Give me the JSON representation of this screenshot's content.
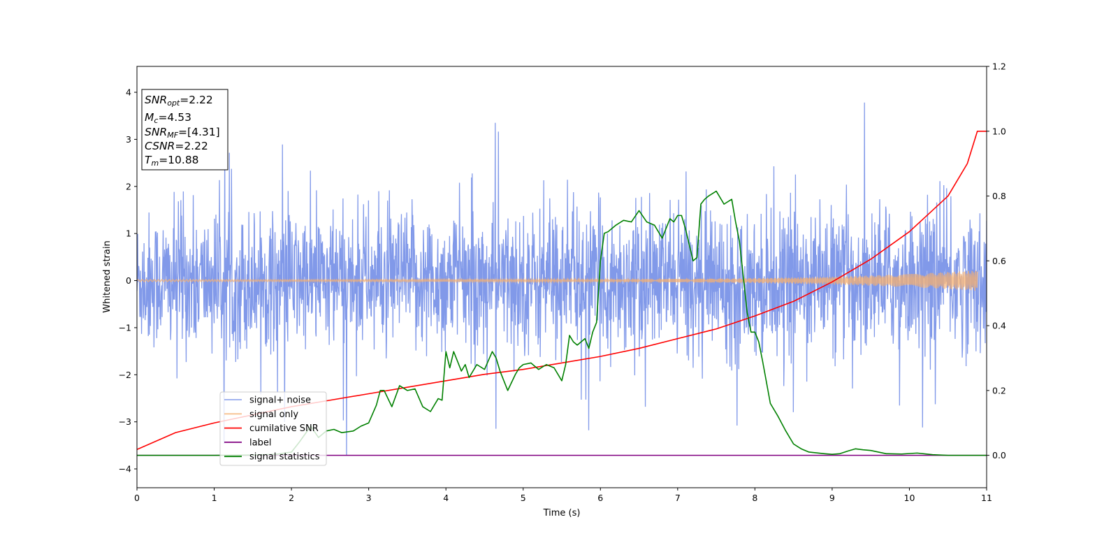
{
  "chart_data": {
    "type": "line",
    "xlabel": "Time (s)",
    "ylabel": "Whitened strain",
    "xlim": [
      0,
      11
    ],
    "ylim_left": [
      -4.4,
      4.55
    ],
    "ylim_right": [
      -0.1,
      1.2
    ],
    "xticks": [
      "0",
      "1",
      "2",
      "3",
      "4",
      "5",
      "6",
      "7",
      "8",
      "9",
      "10",
      "11"
    ],
    "yticks_left": [
      "4",
      "3",
      "2",
      "1",
      "0",
      "−1",
      "−2",
      "−3",
      "−4"
    ],
    "yticks_right": [
      "1.2",
      "1.0",
      "0.8",
      "0.6",
      "0.4",
      "0.2",
      "0.0"
    ],
    "grid": false,
    "legend_position": "lower-left",
    "info_box": {
      "lines": [
        {
          "main": "SNR",
          "sub": "opt",
          "rest": "=2.22"
        },
        {
          "main": "M",
          "sub": "c",
          "rest": "=4.53"
        },
        {
          "main": "SNR",
          "sub": "MF",
          "rest": "=[4.31]"
        },
        {
          "main": "CSNR",
          "sub": "",
          "rest": "=2.22"
        },
        {
          "main": "T",
          "sub": "m",
          "rest": "=10.88"
        }
      ]
    },
    "series": [
      {
        "name": "signal+ noise",
        "axis": "left",
        "color": "#7a94e8",
        "description_values": "noise_band",
        "envelope_typical": 1.6,
        "envelope_max": 4.17,
        "x_range": [
          0,
          11
        ]
      },
      {
        "name": "signal only",
        "axis": "left",
        "color": "#f5b070",
        "chirp_amplitude_start": 0.02,
        "chirp_amplitude_end": 0.22,
        "x_range": [
          0,
          10.88
        ]
      },
      {
        "name": "cumilative SNR",
        "axis": "right",
        "color": "#ff0000",
        "x": [
          0,
          0.5,
          1,
          1.5,
          2,
          2.5,
          3,
          3.5,
          4,
          4.5,
          5,
          5.5,
          6,
          6.5,
          7,
          7.5,
          8,
          8.5,
          9,
          9.5,
          10,
          10.5,
          10.75,
          10.88,
          11
        ],
        "y": [
          0.018,
          0.07,
          0.1,
          0.125,
          0.15,
          0.17,
          0.19,
          0.21,
          0.23,
          0.25,
          0.265,
          0.285,
          0.305,
          0.33,
          0.36,
          0.39,
          0.43,
          0.475,
          0.535,
          0.605,
          0.69,
          0.8,
          0.9,
          1.0,
          1.0
        ]
      },
      {
        "name": "label",
        "axis": "right",
        "color": "#800080",
        "x": [
          0,
          11
        ],
        "y": [
          0.0,
          0.0
        ]
      },
      {
        "name": "signal statistics",
        "axis": "right",
        "color": "#008000",
        "x": [
          0,
          0.5,
          1.0,
          1.5,
          1.8,
          2.0,
          2.1,
          2.25,
          2.35,
          2.45,
          2.55,
          2.65,
          2.8,
          2.9,
          3.0,
          3.1,
          3.15,
          3.2,
          3.3,
          3.4,
          3.5,
          3.6,
          3.7,
          3.8,
          3.9,
          3.95,
          4.0,
          4.05,
          4.1,
          4.15,
          4.2,
          4.25,
          4.3,
          4.4,
          4.5,
          4.6,
          4.65,
          4.7,
          4.8,
          4.9,
          4.95,
          5.0,
          5.1,
          5.2,
          5.3,
          5.4,
          5.5,
          5.55,
          5.6,
          5.65,
          5.7,
          5.75,
          5.8,
          5.85,
          5.9,
          5.95,
          6.0,
          6.05,
          6.1,
          6.15,
          6.2,
          6.3,
          6.4,
          6.5,
          6.6,
          6.7,
          6.8,
          6.9,
          6.95,
          7.0,
          7.05,
          7.1,
          7.2,
          7.25,
          7.3,
          7.35,
          7.4,
          7.5,
          7.6,
          7.7,
          7.75,
          7.8,
          7.85,
          7.9,
          7.95,
          8.0,
          8.05,
          8.1,
          8.2,
          8.3,
          8.4,
          8.5,
          8.6,
          8.7,
          8.9,
          9.0,
          9.1,
          9.2,
          9.3,
          9.4,
          9.5,
          9.7,
          9.9,
          10.1,
          10.3,
          10.5,
          10.7,
          10.9,
          11.0
        ],
        "y": [
          0.0,
          0.0,
          0.0,
          0.001,
          0.003,
          0.01,
          0.04,
          0.09,
          0.055,
          0.075,
          0.08,
          0.07,
          0.075,
          0.09,
          0.1,
          0.155,
          0.2,
          0.2,
          0.15,
          0.215,
          0.2,
          0.205,
          0.15,
          0.135,
          0.175,
          0.17,
          0.32,
          0.27,
          0.32,
          0.29,
          0.26,
          0.28,
          0.24,
          0.28,
          0.265,
          0.32,
          0.3,
          0.26,
          0.2,
          0.25,
          0.27,
          0.28,
          0.285,
          0.265,
          0.28,
          0.27,
          0.23,
          0.28,
          0.37,
          0.35,
          0.34,
          0.35,
          0.36,
          0.33,
          0.38,
          0.41,
          0.6,
          0.685,
          0.69,
          0.7,
          0.71,
          0.725,
          0.72,
          0.755,
          0.72,
          0.71,
          0.67,
          0.73,
          0.72,
          0.74,
          0.74,
          0.7,
          0.6,
          0.61,
          0.775,
          0.79,
          0.8,
          0.815,
          0.775,
          0.79,
          0.72,
          0.66,
          0.55,
          0.44,
          0.38,
          0.38,
          0.35,
          0.29,
          0.16,
          0.12,
          0.075,
          0.035,
          0.02,
          0.01,
          0.005,
          0.003,
          0.005,
          0.013,
          0.02,
          0.017,
          0.015,
          0.005,
          0.004,
          0.007,
          0.002,
          0.0,
          0.0,
          0.0,
          0.0
        ]
      }
    ]
  }
}
